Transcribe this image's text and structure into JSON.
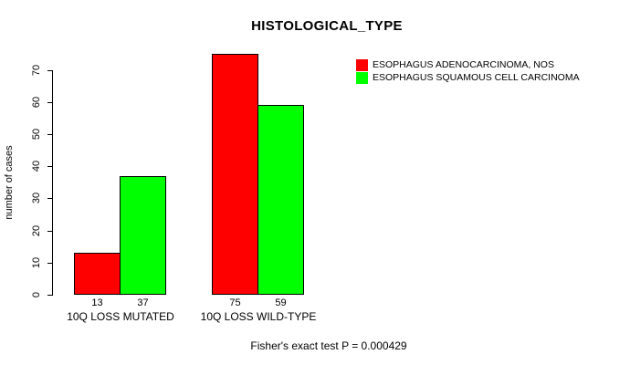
{
  "chart_data": {
    "type": "bar",
    "title": "HISTOLOGICAL_TYPE",
    "categories": [
      "10Q LOSS MUTATED",
      "10Q LOSS WILD-TYPE"
    ],
    "series": [
      {
        "name": "ESOPHAGUS ADENOCARCINOMA, NOS",
        "color": "#FF0000",
        "values": [
          13,
          75
        ]
      },
      {
        "name": "ESOPHAGUS SQUAMOUS CELL CARCINOMA",
        "color": "#00FF00",
        "values": [
          37,
          59
        ]
      }
    ],
    "bar_value_labels": [
      [
        13,
        37
      ],
      [
        75,
        59
      ]
    ],
    "xlabel": "",
    "ylabel": "number of cases",
    "ylim": [
      0,
      70
    ],
    "yticks": [
      0,
      10,
      20,
      30,
      40,
      50,
      60,
      70
    ],
    "grid": false,
    "legend_position": "top-right",
    "bar_border_color": "#000000",
    "background_color": "#FFFFFF",
    "annotation": "Fisher's exact test P = 0.000429"
  }
}
